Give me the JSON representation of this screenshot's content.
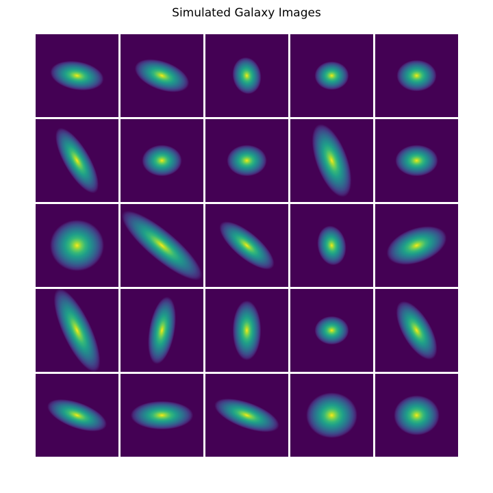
{
  "chart_data": {
    "type": "heatmap",
    "title": "Simulated Galaxy Images",
    "xlabel": "",
    "ylabel": "",
    "rows": 5,
    "cols": 5,
    "colormap": "viridis",
    "background_color": "#440154",
    "panels": [
      {
        "row": 0,
        "col": 0,
        "sigma_major": 1.9,
        "sigma_minor": 1.0,
        "angle_deg": 10
      },
      {
        "row": 0,
        "col": 1,
        "sigma_major": 2.0,
        "sigma_minor": 1.0,
        "angle_deg": 20
      },
      {
        "row": 0,
        "col": 2,
        "sigma_major": 1.3,
        "sigma_minor": 1.0,
        "angle_deg": 80
      },
      {
        "row": 0,
        "col": 3,
        "sigma_major": 1.2,
        "sigma_minor": 1.0,
        "angle_deg": 0
      },
      {
        "row": 0,
        "col": 4,
        "sigma_major": 1.4,
        "sigma_minor": 1.1,
        "angle_deg": 0
      },
      {
        "row": 1,
        "col": 0,
        "sigma_major": 2.6,
        "sigma_minor": 0.9,
        "angle_deg": 60
      },
      {
        "row": 1,
        "col": 1,
        "sigma_major": 1.4,
        "sigma_minor": 1.1,
        "angle_deg": 0
      },
      {
        "row": 1,
        "col": 2,
        "sigma_major": 1.4,
        "sigma_minor": 1.1,
        "angle_deg": 0
      },
      {
        "row": 1,
        "col": 3,
        "sigma_major": 2.7,
        "sigma_minor": 1.1,
        "angle_deg": 70
      },
      {
        "row": 1,
        "col": 4,
        "sigma_major": 1.5,
        "sigma_minor": 1.1,
        "angle_deg": 0
      },
      {
        "row": 2,
        "col": 0,
        "sigma_major": 1.9,
        "sigma_minor": 1.8,
        "angle_deg": 0
      },
      {
        "row": 2,
        "col": 1,
        "sigma_major": 3.6,
        "sigma_minor": 1.0,
        "angle_deg": 40
      },
      {
        "row": 2,
        "col": 2,
        "sigma_major": 2.4,
        "sigma_minor": 0.9,
        "angle_deg": 40
      },
      {
        "row": 2,
        "col": 3,
        "sigma_major": 1.4,
        "sigma_minor": 1.0,
        "angle_deg": 80
      },
      {
        "row": 2,
        "col": 4,
        "sigma_major": 2.2,
        "sigma_minor": 1.2,
        "angle_deg": -20
      },
      {
        "row": 3,
        "col": 0,
        "sigma_major": 3.2,
        "sigma_minor": 1.0,
        "angle_deg": 65
      },
      {
        "row": 3,
        "col": 1,
        "sigma_major": 2.4,
        "sigma_minor": 0.9,
        "angle_deg": 100
      },
      {
        "row": 3,
        "col": 2,
        "sigma_major": 2.1,
        "sigma_minor": 1.0,
        "angle_deg": 90
      },
      {
        "row": 3,
        "col": 3,
        "sigma_major": 1.2,
        "sigma_minor": 1.0,
        "angle_deg": 0
      },
      {
        "row": 3,
        "col": 4,
        "sigma_major": 2.3,
        "sigma_minor": 1.0,
        "angle_deg": 60
      },
      {
        "row": 4,
        "col": 0,
        "sigma_major": 2.2,
        "sigma_minor": 0.9,
        "angle_deg": 20
      },
      {
        "row": 4,
        "col": 1,
        "sigma_major": 2.2,
        "sigma_minor": 1.0,
        "angle_deg": 0
      },
      {
        "row": 4,
        "col": 2,
        "sigma_major": 2.4,
        "sigma_minor": 0.9,
        "angle_deg": 20
      },
      {
        "row": 4,
        "col": 3,
        "sigma_major": 1.8,
        "sigma_minor": 1.6,
        "angle_deg": 0
      },
      {
        "row": 4,
        "col": 4,
        "sigma_major": 1.6,
        "sigma_minor": 1.4,
        "angle_deg": 0
      }
    ]
  }
}
